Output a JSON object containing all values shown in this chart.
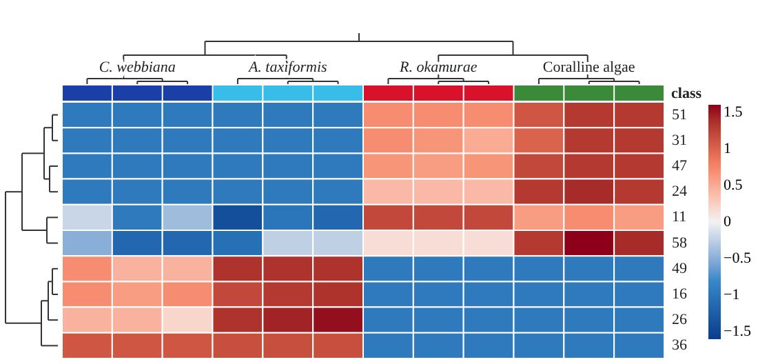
{
  "chart_data": {
    "type": "heatmap",
    "categories": [
      null,
      null,
      null,
      null,
      null,
      null,
      null,
      null,
      null,
      null,
      null,
      null
    ],
    "y_categories": [
      "51",
      "31",
      "47",
      "24",
      "11",
      "58",
      "49",
      "16",
      "26",
      "36"
    ],
    "cells": [
      [
        -0.95,
        -0.95,
        -0.95,
        -0.95,
        -0.95,
        -0.95,
        0.7,
        0.7,
        0.7,
        1.1,
        1.3,
        1.3
      ],
      [
        -0.95,
        -0.95,
        -0.95,
        -0.95,
        -0.95,
        -0.95,
        0.7,
        0.65,
        0.5,
        1.0,
        1.3,
        1.3
      ],
      [
        -0.95,
        -0.95,
        -0.95,
        -0.95,
        -0.95,
        -0.95,
        0.65,
        0.6,
        0.65,
        1.2,
        1.3,
        1.3
      ],
      [
        -0.95,
        -0.95,
        -0.95,
        -0.95,
        -0.95,
        -0.95,
        0.4,
        0.4,
        0.4,
        1.3,
        1.4,
        1.3
      ],
      [
        -0.2,
        -0.95,
        -0.4,
        -1.4,
        -1.0,
        -1.15,
        1.2,
        1.2,
        1.2,
        0.6,
        0.7,
        0.6
      ],
      [
        -0.5,
        -1.15,
        -1.15,
        -1.05,
        -0.25,
        -0.25,
        0.15,
        0.15,
        0.15,
        1.3,
        1.6,
        1.4
      ],
      [
        0.7,
        0.45,
        0.45,
        1.35,
        1.35,
        1.35,
        -0.95,
        -0.95,
        -0.95,
        -0.95,
        -0.95,
        -0.95
      ],
      [
        0.7,
        0.6,
        0.7,
        1.2,
        1.3,
        1.35,
        -0.95,
        -0.95,
        -0.95,
        -0.95,
        -0.95,
        -0.95
      ],
      [
        0.45,
        0.45,
        0.2,
        1.35,
        1.45,
        1.55,
        -0.95,
        -0.95,
        -0.95,
        -0.95,
        -0.95,
        -0.95
      ],
      [
        1.1,
        1.1,
        1.1,
        1.15,
        1.15,
        1.15,
        -0.95,
        -0.95,
        -0.95,
        -0.95,
        -0.95,
        -0.95
      ]
    ],
    "clim": [
      -1.6,
      1.6
    ],
    "cticks": [
      -1.5,
      -1,
      -0.5,
      0,
      0.5,
      1,
      1.5
    ],
    "annotations": [
      "C. webbiana",
      "A. taxiformis",
      "R. okamurae",
      "Coralline algae",
      "class"
    ]
  }
}
